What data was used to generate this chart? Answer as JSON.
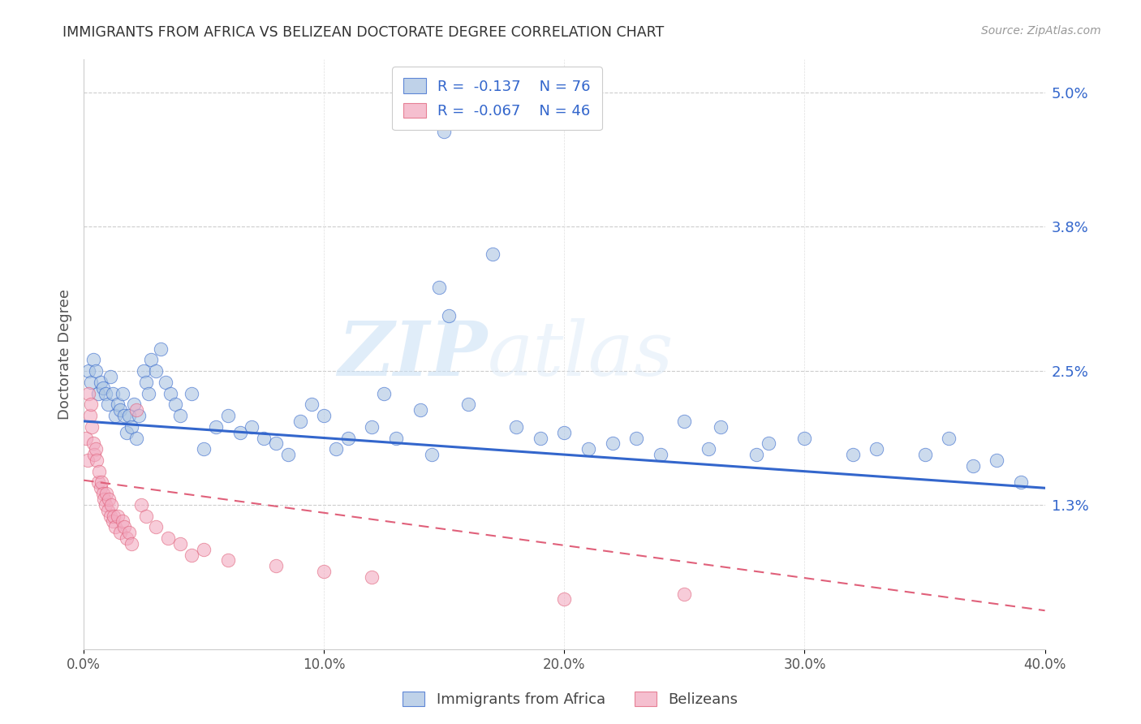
{
  "title": "IMMIGRANTS FROM AFRICA VS BELIZEAN DOCTORATE DEGREE CORRELATION CHART",
  "source": "Source: ZipAtlas.com",
  "ylabel": "Doctorate Degree",
  "ytick_values": [
    1.3,
    2.5,
    3.8,
    5.0
  ],
  "xmin": 0.0,
  "xmax": 40.0,
  "ymin": 0.0,
  "ymax": 5.3,
  "legend1_r": "-0.137",
  "legend1_n": "76",
  "legend2_r": "-0.067",
  "legend2_n": "46",
  "legend_label1": "Immigrants from Africa",
  "legend_label2": "Belizeans",
  "color_blue": "#aac4e2",
  "color_pink": "#f2aac0",
  "line_blue": "#3366cc",
  "line_pink": "#e0607a",
  "watermark": "ZIPatlas",
  "blue_line_y0": 2.05,
  "blue_line_y1": 1.45,
  "pink_line_y0": 1.52,
  "pink_line_y1": 0.35,
  "blue_scatter_x": [
    0.2,
    0.3,
    0.4,
    0.5,
    0.6,
    0.7,
    0.8,
    0.9,
    1.0,
    1.1,
    1.2,
    1.3,
    1.4,
    1.5,
    1.6,
    1.7,
    1.8,
    1.9,
    2.0,
    2.1,
    2.2,
    2.3,
    2.5,
    2.6,
    2.7,
    2.8,
    3.0,
    3.2,
    3.4,
    3.6,
    3.8,
    4.0,
    4.5,
    5.0,
    5.5,
    6.0,
    6.5,
    7.0,
    7.5,
    8.0,
    9.0,
    9.5,
    10.0,
    11.0,
    12.0,
    12.5,
    13.0,
    14.0,
    14.5,
    15.0,
    16.0,
    17.0,
    18.0,
    19.0,
    20.0,
    21.0,
    22.0,
    23.0,
    24.0,
    25.0,
    26.0,
    28.0,
    30.0,
    32.0,
    33.0,
    35.0,
    36.0,
    37.0,
    38.0,
    39.0,
    14.8,
    15.2,
    8.5,
    10.5,
    26.5,
    28.5
  ],
  "blue_scatter_y": [
    2.5,
    2.4,
    2.6,
    2.5,
    2.3,
    2.4,
    2.35,
    2.3,
    2.2,
    2.45,
    2.3,
    2.1,
    2.2,
    2.15,
    2.3,
    2.1,
    1.95,
    2.1,
    2.0,
    2.2,
    1.9,
    2.1,
    2.5,
    2.4,
    2.3,
    2.6,
    2.5,
    2.7,
    2.4,
    2.3,
    2.2,
    2.1,
    2.3,
    1.8,
    2.0,
    2.1,
    1.95,
    2.0,
    1.9,
    1.85,
    2.05,
    2.2,
    2.1,
    1.9,
    2.0,
    2.3,
    1.9,
    2.15,
    1.75,
    4.65,
    2.2,
    3.55,
    2.0,
    1.9,
    1.95,
    1.8,
    1.85,
    1.9,
    1.75,
    2.05,
    1.8,
    1.75,
    1.9,
    1.75,
    1.8,
    1.75,
    1.9,
    1.65,
    1.7,
    1.5,
    3.25,
    3.0,
    1.75,
    1.8,
    2.0,
    1.85
  ],
  "pink_scatter_x": [
    0.1,
    0.15,
    0.2,
    0.25,
    0.3,
    0.35,
    0.4,
    0.45,
    0.5,
    0.55,
    0.6,
    0.65,
    0.7,
    0.75,
    0.8,
    0.85,
    0.9,
    0.95,
    1.0,
    1.05,
    1.1,
    1.15,
    1.2,
    1.25,
    1.3,
    1.4,
    1.5,
    1.6,
    1.7,
    1.8,
    1.9,
    2.0,
    2.2,
    2.4,
    2.6,
    3.0,
    3.5,
    4.0,
    4.5,
    5.0,
    6.0,
    8.0,
    10.0,
    12.0,
    20.0,
    25.0
  ],
  "pink_scatter_y": [
    1.9,
    1.7,
    2.3,
    2.1,
    2.2,
    2.0,
    1.85,
    1.75,
    1.8,
    1.7,
    1.5,
    1.6,
    1.45,
    1.5,
    1.4,
    1.35,
    1.3,
    1.4,
    1.25,
    1.35,
    1.2,
    1.3,
    1.15,
    1.2,
    1.1,
    1.2,
    1.05,
    1.15,
    1.1,
    1.0,
    1.05,
    0.95,
    2.15,
    1.3,
    1.2,
    1.1,
    1.0,
    0.95,
    0.85,
    0.9,
    0.8,
    0.75,
    0.7,
    0.65,
    0.45,
    0.5
  ]
}
